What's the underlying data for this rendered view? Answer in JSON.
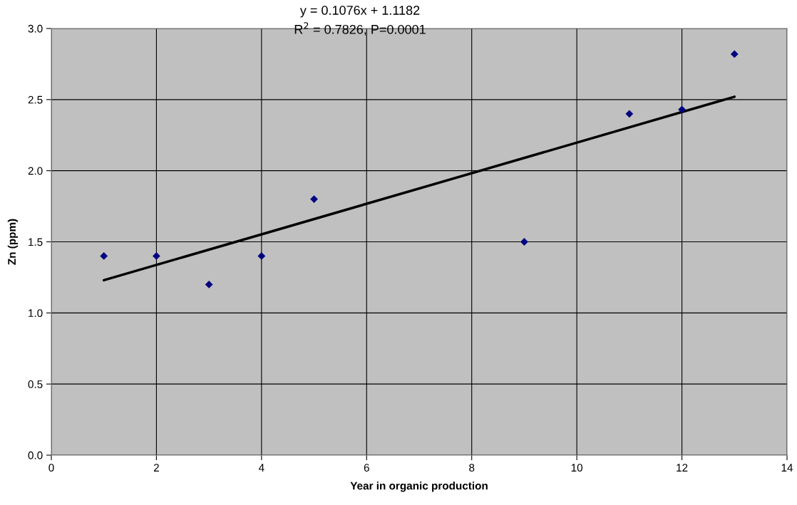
{
  "chart_data": {
    "type": "scatter",
    "xlabel": "Year in organic production",
    "ylabel": "Zn (ppm)",
    "annotations": [
      "y = 0.1076x + 1.1182",
      "R$^{2}$ = 0.7826, P=0.0001"
    ],
    "series": [
      {
        "color": "#000080",
        "marker": "diamond",
        "x": [
          1,
          2,
          3,
          4,
          5,
          9,
          11,
          12,
          13
        ],
        "values": [
          1.4,
          1.4,
          1.2,
          1.4,
          1.8,
          1.5,
          2.4,
          2.43,
          2.82
        ]
      },
      {
        "type": "line",
        "color": "#000000",
        "x": [
          1,
          13
        ],
        "values": [
          1.23,
          2.52
        ]
      }
    ],
    "xlim": [
      0,
      14
    ],
    "xticks": [
      0,
      2,
      4,
      6,
      8,
      10,
      12,
      14
    ],
    "ylim": [
      0,
      3.0
    ],
    "yticks": [
      {
        "value": 0,
        "label": "0.0"
      },
      {
        "value": 0.5,
        "label": "0.5"
      },
      {
        "value": 1.0,
        "label": "1.0"
      },
      {
        "value": 1.5,
        "label": "1.5"
      },
      {
        "value": 2.0,
        "label": "2.0"
      },
      {
        "value": 2.5,
        "label": "2.5"
      },
      {
        "value": 3.0,
        "label": "3.0"
      }
    ],
    "grid": true,
    "legend": false
  }
}
